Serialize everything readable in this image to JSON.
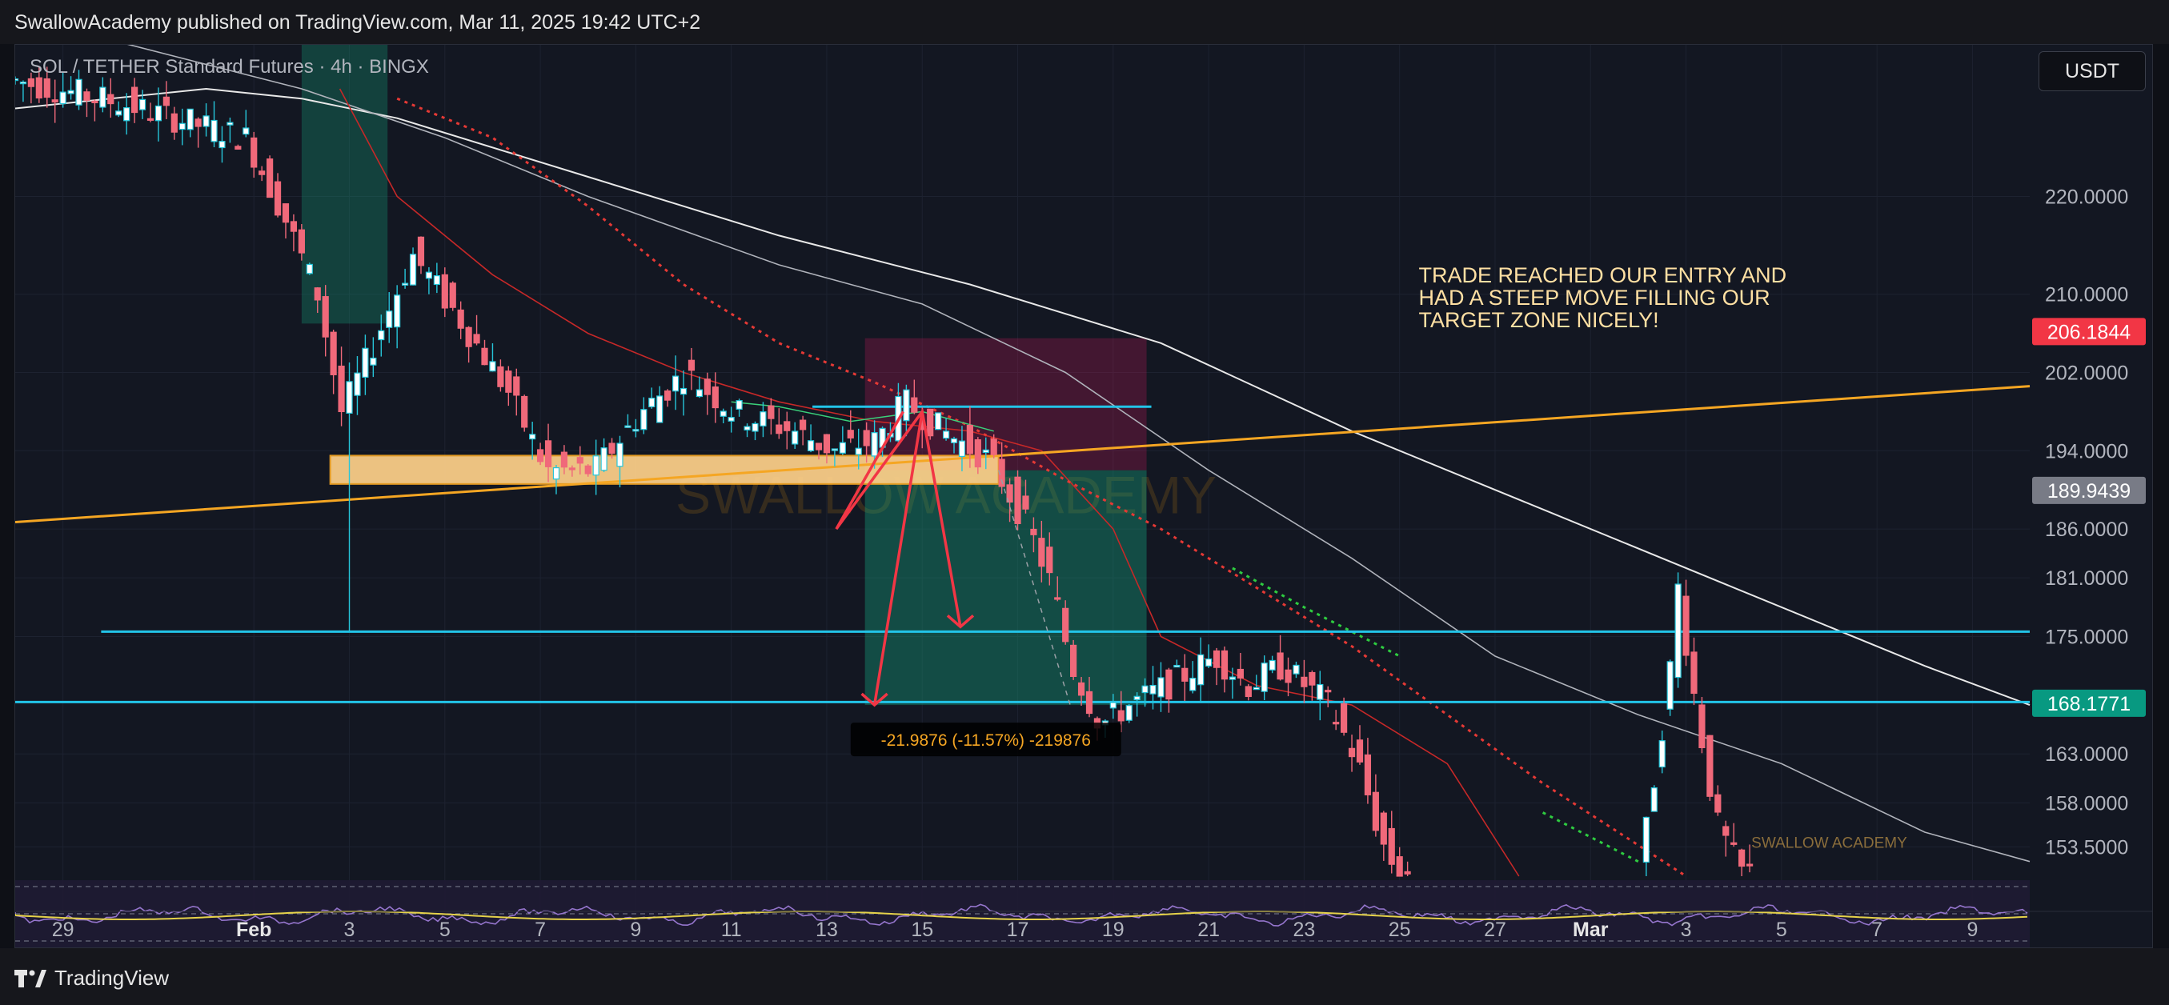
{
  "header": {
    "text": "SwallowAcademy published on TradingView.com, Mar 11, 2025 19:42 UTC+2"
  },
  "symbol": {
    "label": "SOL / TETHER Standard Futures · 4h · BINGX"
  },
  "currency_button": {
    "label": "USDT"
  },
  "footer": {
    "brand": "TradingView"
  },
  "colors": {
    "up": "#26c6da",
    "down": "#f0697a",
    "trendline": "#f5a623",
    "level": "#22c4e8",
    "zone": "#ffd18a",
    "target": "#14a37f",
    "stop": "#c2185b",
    "annotation": "#ffe0a3",
    "price_red": "#f23645",
    "price_gray": "#787b86",
    "price_green": "#089981"
  },
  "annotation": {
    "lines": [
      "TRADE REACHED OUR ENTRY AND",
      "HAD A STEEP MOVE FILLING OUR",
      "TARGET ZONE NICELY!"
    ]
  },
  "measure_label": "-21.9876 (-11.57%) -219876",
  "watermark": "SWALLOW ACADEMY",
  "small_watermark": "SWALLOW ACADEMY",
  "chart_data": {
    "type": "candlestick",
    "x_ticks": [
      "29",
      "Feb",
      "3",
      "5",
      "7",
      "9",
      "11",
      "13",
      "15",
      "17",
      "19",
      "21",
      "23",
      "25",
      "27",
      "Mar",
      "3",
      "5",
      "7",
      "9"
    ],
    "x_tick_days": [
      -3,
      1,
      3,
      5,
      7,
      9,
      11,
      13,
      15,
      17,
      19,
      21,
      23,
      25,
      27,
      29,
      31,
      33,
      35,
      37
    ],
    "bold_ticks": [
      "Feb",
      "Mar"
    ],
    "y_ticks": [
      220,
      210,
      202,
      194,
      186,
      181,
      175,
      163,
      158,
      153.5
    ],
    "y_tick_labels": [
      "220.0000",
      "210.0000",
      "202.0000",
      "194.0000",
      "186.0000",
      "181.0000",
      "175.0000",
      "163.0000",
      "158.0000",
      "153.5000"
    ],
    "y_range": [
      150.5,
      235.5
    ],
    "x_range": [
      -4,
      38.2
    ],
    "price_labels": [
      {
        "value": 206.1844,
        "text": "206.1844",
        "color": "#f23645"
      },
      {
        "value": 189.9439,
        "text": "189.9439",
        "color": "#787b86"
      },
      {
        "value": 168.1771,
        "text": "168.1771",
        "color": "#089981"
      }
    ],
    "horizontal_levels": [
      {
        "value": 175.5,
        "x_start": -2.2
      },
      {
        "value": 168.3,
        "x_start": -4
      }
    ],
    "short_level": {
      "value": 198.5,
      "x_start": 12.7,
      "x_end": 19.8
    },
    "trendline": {
      "x1": -4,
      "y1": 186.7,
      "x2": 38.2,
      "y2": 200.6
    },
    "support_zone": {
      "x1": 2.6,
      "x2": 16.6,
      "y_low": 190.6,
      "y_high": 193.5
    },
    "position_box": {
      "x1": 13.8,
      "x2": 19.7,
      "entry": 192.0,
      "stop": 205.5,
      "target": 168.0
    },
    "rsi_panel": {
      "y_top": 1044,
      "y_bottom": 1128
    }
  }
}
